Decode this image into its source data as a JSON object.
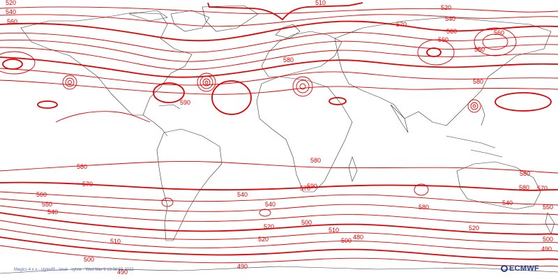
{
  "footer": {
    "caption": "Magics 4.x.x - stylevf9 - local - sylvie - Wed Mar  9 19:08:55 2022",
    "logo_text": "ECMWF"
  },
  "contours": {
    "color": "#e00000",
    "coastline_color": "#333333",
    "labels": [
      "520",
      "540",
      "560",
      "510",
      "520",
      "540",
      "560",
      "570",
      "590",
      "580",
      "560",
      "560",
      "550",
      "580",
      "580",
      "590",
      "580",
      "570",
      "580",
      "580",
      "560",
      "550",
      "540",
      "540",
      "520",
      "500",
      "510",
      "490",
      "500",
      "480",
      "510",
      "500",
      "520",
      "540",
      "570",
      "580",
      "570",
      "550",
      "540",
      "520",
      "500",
      "490",
      "490"
    ]
  }
}
